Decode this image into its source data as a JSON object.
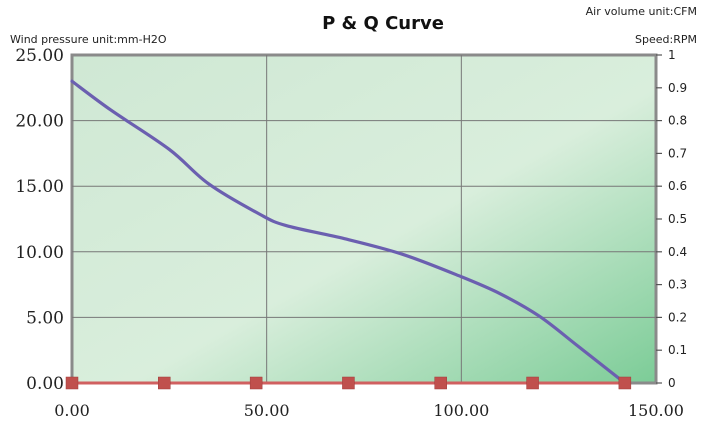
{
  "chart_data": {
    "type": "line",
    "title": "P & Q Curve",
    "left_unit_label": "Wind pressure unit:mm-H2O",
    "top_right_unit_label": "Air volume unit:CFM",
    "right_unit_label": "Speed:RPM",
    "xlim": [
      0,
      150
    ],
    "ylim": [
      0,
      25
    ],
    "y2lim": [
      0,
      1
    ],
    "x_ticks": [
      "0.00",
      "50.00",
      "100.00",
      "150.00"
    ],
    "y_ticks": [
      "0.00",
      "5.00",
      "10.00",
      "15.00",
      "20.00",
      "25.00"
    ],
    "y2_ticks": [
      "0",
      "0.1",
      "0.2",
      "0.3",
      "0.4",
      "0.5",
      "0.6",
      "0.7",
      "0.8",
      "0.9",
      "1"
    ],
    "grid": true,
    "series": [
      {
        "color": "#6b5fb0",
        "x": [
          0,
          10,
          25,
          35,
          48,
          55,
          70,
          85,
          100,
          110,
          120,
          130,
          142
        ],
        "y": [
          23,
          20.8,
          17.8,
          15.2,
          12.9,
          12.0,
          11.0,
          9.8,
          8.1,
          6.8,
          5.1,
          2.8,
          0
        ]
      },
      {
        "color": "#d06060",
        "marker": "square",
        "marker_color": "#c0504d",
        "x": [
          0,
          23.7,
          47.3,
          71,
          94.7,
          118.3,
          142
        ],
        "y": [
          0,
          0,
          0,
          0,
          0,
          0,
          0
        ]
      }
    ]
  }
}
